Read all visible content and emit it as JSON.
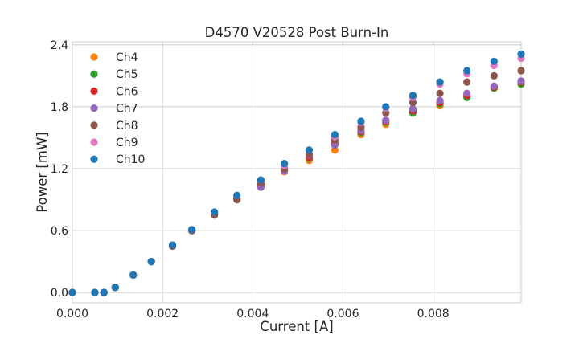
{
  "chart_data": {
    "type": "scatter",
    "title": "D4570 V20528 Post Burn-In",
    "xlabel": "Current [A]",
    "ylabel": "Power [mW]",
    "xlim": [
      0,
      0.00995
    ],
    "ylim": [
      -0.1,
      2.43
    ],
    "x_ticks": [
      "0.000",
      "0.002",
      "0.004",
      "0.006",
      "0.008"
    ],
    "x_tick_values": [
      0,
      0.002,
      0.004,
      0.006,
      0.008
    ],
    "y_ticks": [
      "0.0",
      "0.6",
      "1.2",
      "1.8",
      "2.4"
    ],
    "y_tick_values": [
      0,
      0.6,
      1.2,
      1.8,
      2.4
    ],
    "grid": true,
    "legend_position": "top-left",
    "x": [
      0,
      0.0005,
      0.0007,
      0.00095,
      0.00135,
      0.00175,
      0.00222,
      0.00265,
      0.00315,
      0.00365,
      0.00418,
      0.0047,
      0.00525,
      0.00582,
      0.0064,
      0.00695,
      0.00755,
      0.00815,
      0.00875,
      0.00935,
      0.00995
    ],
    "series": [
      {
        "name": "Ch4",
        "color": "#ff7f0e",
        "values": [
          0,
          0,
          0,
          0.05,
          0.17,
          0.3,
          0.45,
          0.6,
          0.76,
          0.91,
          1.05,
          1.17,
          1.28,
          1.38,
          1.53,
          1.63,
          1.75,
          1.81,
          1.9,
          1.98,
          2.02
        ]
      },
      {
        "name": "Ch5",
        "color": "#2ca02c",
        "values": [
          0,
          0,
          0,
          0.05,
          0.17,
          0.3,
          0.45,
          0.6,
          0.76,
          0.91,
          1.05,
          1.18,
          1.3,
          1.44,
          1.55,
          1.65,
          1.74,
          1.83,
          1.89,
          1.98,
          2.02
        ]
      },
      {
        "name": "Ch6",
        "color": "#d62728",
        "values": [
          0,
          0,
          0,
          0.05,
          0.17,
          0.3,
          0.45,
          0.6,
          0.76,
          0.91,
          1.05,
          1.18,
          1.31,
          1.45,
          1.56,
          1.66,
          1.76,
          1.84,
          1.91,
          1.99,
          2.04
        ]
      },
      {
        "name": "Ch7",
        "color": "#9467bd",
        "values": [
          0,
          0,
          0,
          0.05,
          0.17,
          0.3,
          0.45,
          0.6,
          0.76,
          0.9,
          1.02,
          1.18,
          1.33,
          1.43,
          1.57,
          1.67,
          1.78,
          1.86,
          1.93,
          2.0,
          2.05
        ]
      },
      {
        "name": "Ch8",
        "color": "#8c564b",
        "values": [
          0,
          0,
          0,
          0.05,
          0.17,
          0.3,
          0.45,
          0.6,
          0.75,
          0.9,
          1.06,
          1.2,
          1.34,
          1.48,
          1.6,
          1.74,
          1.84,
          1.93,
          2.04,
          2.1,
          2.15
        ]
      },
      {
        "name": "Ch9",
        "color": "#e377c2",
        "values": [
          0,
          0,
          0,
          0.05,
          0.17,
          0.3,
          0.46,
          0.61,
          0.78,
          0.94,
          1.09,
          1.23,
          1.38,
          1.51,
          1.65,
          1.79,
          1.89,
          2.02,
          2.12,
          2.2,
          2.27
        ]
      },
      {
        "name": "Ch10",
        "color": "#1f77b4",
        "values": [
          0,
          0,
          0,
          0.05,
          0.17,
          0.3,
          0.46,
          0.61,
          0.78,
          0.94,
          1.09,
          1.25,
          1.38,
          1.53,
          1.66,
          1.8,
          1.91,
          2.04,
          2.15,
          2.24,
          2.31
        ]
      }
    ]
  }
}
